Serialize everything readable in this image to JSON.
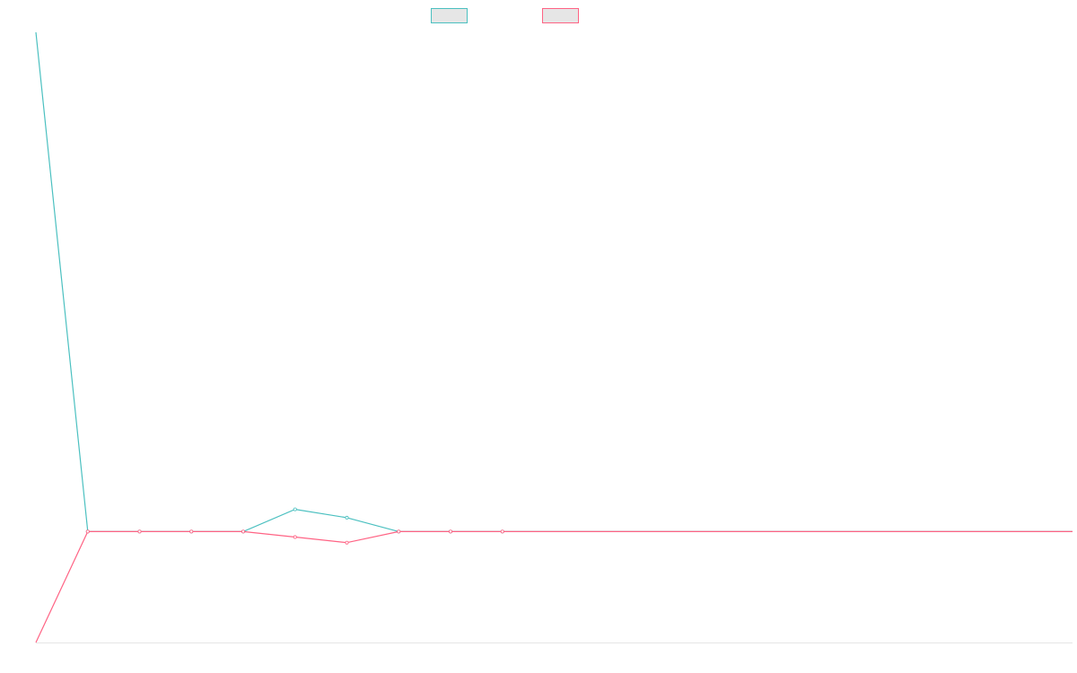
{
  "chart_data": {
    "type": "line",
    "title": "",
    "xlabel": "",
    "ylabel": "",
    "grid": false,
    "legend_position": "top",
    "x": [
      0,
      1,
      2,
      3,
      4,
      5,
      6,
      7,
      8,
      9,
      10,
      11,
      12,
      13,
      14,
      15,
      16,
      17,
      18,
      19,
      20
    ],
    "xlim": [
      0,
      20
    ],
    "ylim": [
      -0.2,
      0.9
    ],
    "series": [
      {
        "name": "",
        "color": "#4bc0c0",
        "values": [
          0.9,
          0,
          0,
          0,
          0,
          0.04,
          0.025,
          0,
          0,
          0,
          0,
          0,
          0,
          0,
          0,
          0,
          0,
          0,
          0,
          0,
          0
        ]
      },
      {
        "name": "",
        "color": "#ff6384",
        "values": [
          -0.2,
          0,
          0,
          0,
          0,
          -0.01,
          -0.02,
          0,
          0,
          0,
          0,
          0,
          0,
          0,
          0,
          0,
          0,
          0,
          0,
          0,
          0
        ]
      }
    ]
  }
}
